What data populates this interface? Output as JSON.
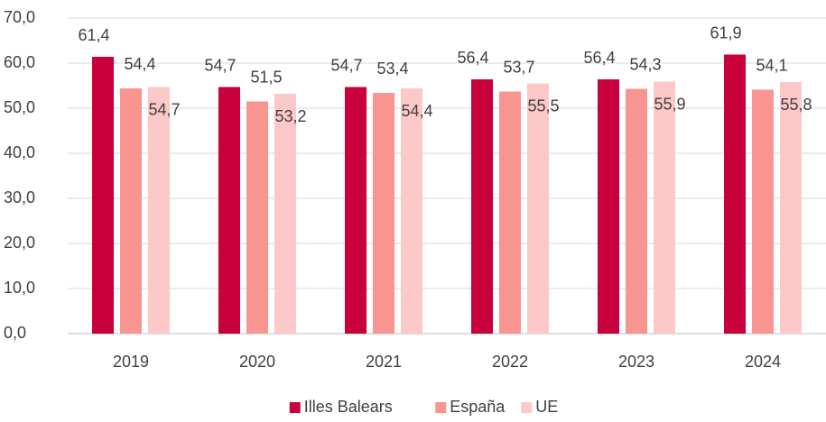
{
  "chart_data": {
    "type": "bar",
    "categories": [
      "2019",
      "2020",
      "2021",
      "2022",
      "2023",
      "2024"
    ],
    "series": [
      {
        "name": "Illes Balears",
        "color": "#c8003c",
        "values": [
          61.4,
          54.7,
          54.7,
          56.4,
          56.4,
          61.9
        ],
        "value_labels": [
          "61,4",
          "54,7",
          "54,7",
          "56,4",
          "56,4",
          "61,9"
        ]
      },
      {
        "name": "España",
        "color": "#f99591",
        "values": [
          54.4,
          51.5,
          53.4,
          53.7,
          54.3,
          54.1
        ],
        "value_labels": [
          "54,4",
          "51,5",
          "53,4",
          "53,7",
          "54,3",
          "54,1"
        ]
      },
      {
        "name": "UE",
        "color": "#fcc8c8",
        "values": [
          54.7,
          53.2,
          54.4,
          55.5,
          55.9,
          55.8
        ],
        "value_labels": [
          "54,7",
          "53,2",
          "54,4",
          "55,5",
          "55,9",
          "55,8"
        ]
      }
    ],
    "ylim": [
      0,
      70
    ],
    "yticks": [
      {
        "value": 0,
        "label": "0,0"
      },
      {
        "value": 10,
        "label": "10,0"
      },
      {
        "value": 20,
        "label": "20,0"
      },
      {
        "value": 30,
        "label": "30,0"
      },
      {
        "value": 40,
        "label": "40,0"
      },
      {
        "value": 50,
        "label": "50,0"
      },
      {
        "value": 60,
        "label": "60,0"
      },
      {
        "value": 70,
        "label": "70,0"
      }
    ],
    "grid": true,
    "legend": "bottom"
  }
}
